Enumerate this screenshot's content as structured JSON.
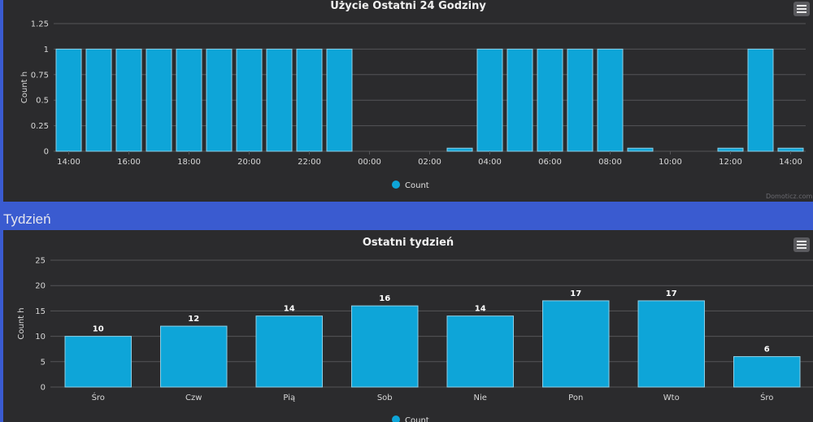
{
  "section_label": "Tydzień",
  "credit": "Domoticz.com",
  "colors": {
    "bar": "#0ea5d8",
    "bar_stroke": "#8ecfe6",
    "grid": "#555558",
    "text": "#d8d8d8"
  },
  "menu_icon": "hamburger-menu-icon",
  "chart_data": [
    {
      "type": "bar",
      "title": "Użycie Ostatni 24 Godziny",
      "ylabel": "Count h",
      "xlabel": "",
      "ylim": [
        0,
        1.25
      ],
      "yticks": [
        "0",
        "0.25",
        "0.5",
        "0.75",
        "1",
        "1.25"
      ],
      "ytick_values": [
        0,
        0.25,
        0.5,
        0.75,
        1,
        1.25
      ],
      "xtick_labels": [
        "14:00",
        "16:00",
        "18:00",
        "20:00",
        "22:00",
        "00:00",
        "02:00",
        "04:00",
        "06:00",
        "08:00",
        "10:00",
        "12:00",
        "14:00"
      ],
      "categories": [
        "14:00",
        "15:00",
        "16:00",
        "17:00",
        "18:00",
        "19:00",
        "20:00",
        "21:00",
        "22:00",
        "23:00",
        "00:00",
        "01:00",
        "02:00",
        "03:00",
        "04:00",
        "05:00",
        "06:00",
        "07:00",
        "08:00",
        "09:00",
        "10:00",
        "11:00",
        "12:00",
        "13:00",
        "14:00"
      ],
      "values": [
        1,
        1,
        1,
        1,
        1,
        1,
        1,
        1,
        1,
        1,
        0,
        0,
        0,
        0.03,
        1,
        1,
        1,
        1,
        1,
        0.03,
        0,
        0,
        0.03,
        1,
        0.03
      ],
      "legend": "Count"
    },
    {
      "type": "bar",
      "title": "Ostatni tydzień",
      "ylabel": "Count h",
      "xlabel": "",
      "ylim": [
        0,
        25
      ],
      "yticks": [
        "0",
        "5",
        "10",
        "15",
        "20",
        "25"
      ],
      "ytick_values": [
        0,
        5,
        10,
        15,
        20,
        25
      ],
      "categories": [
        "Śro",
        "Czw",
        "Pią",
        "Sob",
        "Nie",
        "Pon",
        "Wto",
        "Śro"
      ],
      "values": [
        10,
        12,
        14,
        16,
        14,
        17,
        17,
        6
      ],
      "data_labels": [
        "10",
        "12",
        "14",
        "16",
        "14",
        "17",
        "17",
        "6"
      ],
      "legend": "Count"
    }
  ]
}
